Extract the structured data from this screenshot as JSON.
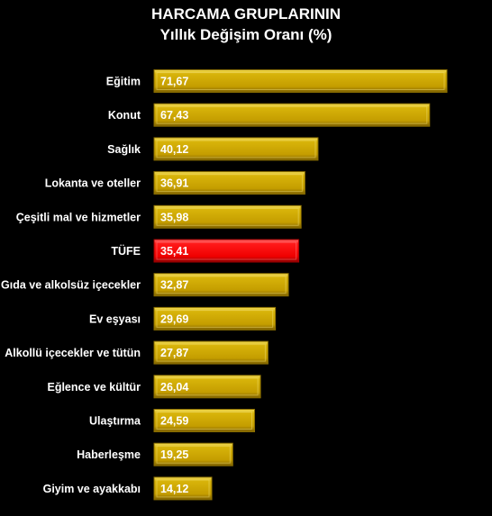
{
  "chart_data": {
    "type": "bar",
    "orientation": "horizontal",
    "title": "HARCAMA GRUPLARININ",
    "subtitle": "Yıllık  Değişim Oranı (%)",
    "categories": [
      "Eğitim",
      "Konut",
      "Sağlık",
      "Lokanta ve oteller",
      "Çeşitli mal ve hizmetler",
      "TÜFE",
      "Gıda ve alkolsüz içecekler",
      "Ev eşyası",
      "Alkollü içecekler ve tütün",
      "Eğlence ve kültür",
      "Ulaştırma",
      "Haberleşme",
      "Giyim ve ayakkabı"
    ],
    "values": [
      71.67,
      67.43,
      40.12,
      36.91,
      35.98,
      35.41,
      32.87,
      29.69,
      27.87,
      26.04,
      24.59,
      19.25,
      14.12
    ],
    "value_labels": [
      "71,67",
      "67,43",
      "40,12",
      "36,91",
      "35,98",
      "35,41",
      "32,87",
      "29,69",
      "27,87",
      "26,04",
      "24,59",
      "19,25",
      "14,12"
    ],
    "highlight_category": "TÜFE",
    "colors": {
      "bar": "#c9a400",
      "highlight": "#ff0000",
      "background": "#000000",
      "text": "#ffffff"
    },
    "grid": false,
    "legend": false
  }
}
